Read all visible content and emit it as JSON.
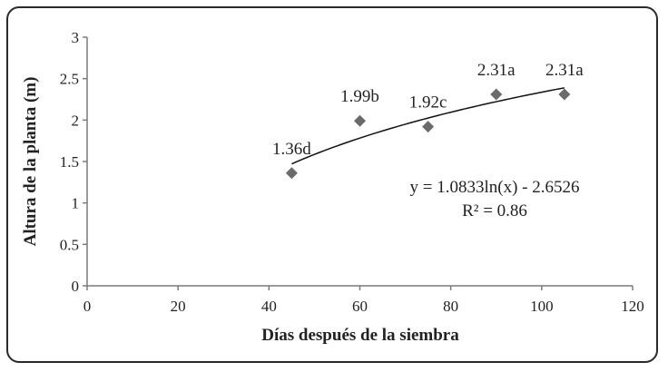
{
  "chart_data": {
    "type": "scatter",
    "xlabel": "Días después de la siembra",
    "ylabel": "Altura de la planta (m)",
    "xlim": [
      0,
      120
    ],
    "ylim": [
      0,
      3
    ],
    "x_ticks": [
      "0",
      "20",
      "40",
      "60",
      "80",
      "100",
      "120"
    ],
    "y_ticks": [
      "0",
      "0.5",
      "1",
      "1.5",
      "2",
      "2.5",
      "3"
    ],
    "grid": false,
    "marker": "diamond",
    "points": [
      {
        "x": 45,
        "y": 1.36,
        "label": "1.36d"
      },
      {
        "x": 60,
        "y": 1.99,
        "label": "1.99b"
      },
      {
        "x": 75,
        "y": 1.92,
        "label": "1.92c"
      },
      {
        "x": 90,
        "y": 2.31,
        "label": "2.31a"
      },
      {
        "x": 105,
        "y": 2.31,
        "label": "2.31a"
      }
    ],
    "trendline": {
      "type": "logarithmic",
      "a": 1.0833,
      "b": -2.6526,
      "x_range": [
        45,
        105
      ],
      "equation": "y = 1.0833ln(x) - 2.6526",
      "r2_label": "R² = 0.86"
    },
    "colors": {
      "marker": "#6b6b6b",
      "trendline": "#111111",
      "axis": "#7a7a7a",
      "text": "#222222"
    }
  }
}
